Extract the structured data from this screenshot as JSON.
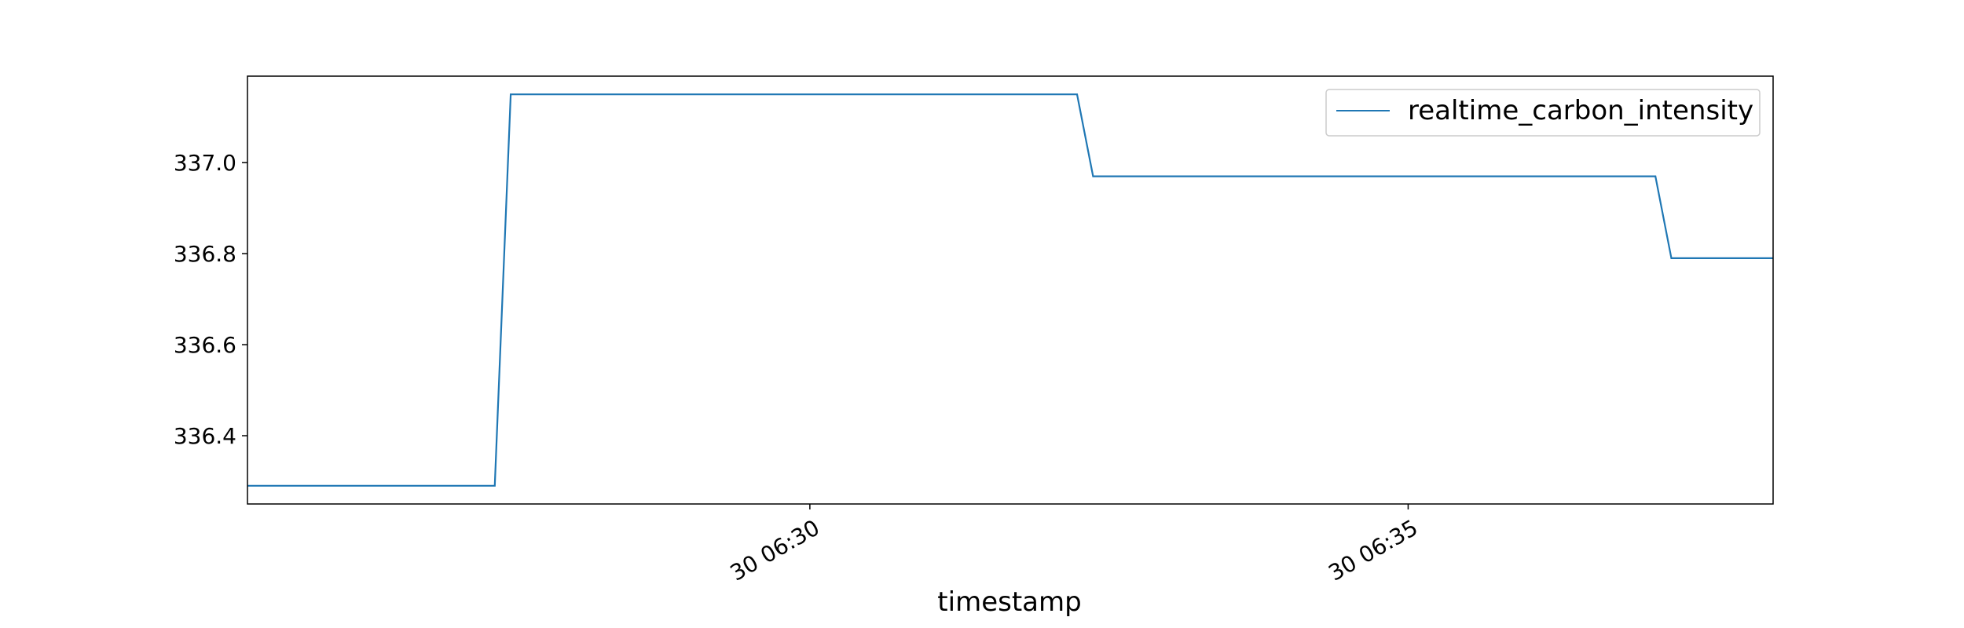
{
  "chart_data": {
    "type": "line",
    "title": "",
    "xlabel": "timestamp",
    "ylabel": "",
    "ylim": [
      336.25,
      337.19
    ],
    "xlim": [
      "06:25:18",
      "06:38:03"
    ],
    "x_ticks": [
      {
        "time": "06:30:00",
        "label": "30 06:30"
      },
      {
        "time": "06:35:00",
        "label": "30 06:35"
      }
    ],
    "y_ticks": [
      336.4,
      336.6,
      336.8,
      337.0
    ],
    "y_tick_labels": [
      "336.4",
      "336.6",
      "336.8",
      "337.0"
    ],
    "grid": false,
    "legend_position": "upper right",
    "series": [
      {
        "name": "realtime_carbon_intensity",
        "color": "#1f77b4",
        "x": [
          "06:25:18",
          "06:27:22",
          "06:27:30",
          "06:32:14",
          "06:32:22",
          "06:37:04",
          "06:37:12",
          "06:38:03"
        ],
        "y": [
          336.29,
          336.29,
          337.15,
          337.15,
          336.97,
          336.97,
          336.79,
          336.79
        ]
      }
    ]
  }
}
